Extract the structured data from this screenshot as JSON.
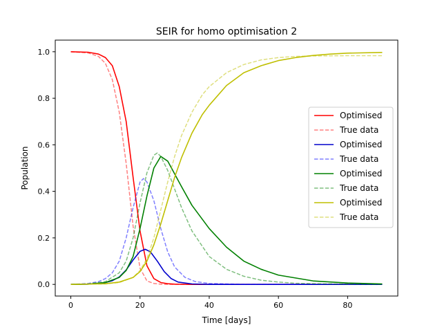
{
  "chart_data": {
    "type": "line",
    "title": "SEIR for homo optimisation 2",
    "xlabel": "Time [days]",
    "ylabel": "Population",
    "xlim": [
      -4.5,
      94.5
    ],
    "ylim": [
      -0.05,
      1.05
    ],
    "x_ticks": [
      0,
      20,
      40,
      60,
      80
    ],
    "y_ticks": [
      0.0,
      0.2,
      0.4,
      0.6,
      0.8,
      1.0
    ],
    "x_tick_labels": [
      "0",
      "20",
      "40",
      "60",
      "80"
    ],
    "y_tick_labels": [
      "0.0",
      "0.2",
      "0.4",
      "0.6",
      "0.8",
      "1.0"
    ],
    "grid": false,
    "legend_position": "center-right",
    "series": [
      {
        "name": "Optimised",
        "color": "#ff0000",
        "style": "solid",
        "x": [
          0,
          5,
          8,
          10,
          12,
          14,
          16,
          18,
          20,
          22,
          24,
          26,
          28,
          30,
          35,
          40,
          50,
          60,
          70,
          80,
          90
        ],
        "y": [
          1.0,
          0.998,
          0.99,
          0.975,
          0.94,
          0.85,
          0.7,
          0.46,
          0.23,
          0.08,
          0.025,
          0.008,
          0.003,
          0.001,
          0,
          0,
          0,
          0,
          0,
          0,
          0
        ]
      },
      {
        "name": "True data",
        "color": "#ff0000",
        "style": "dashed",
        "x": [
          0,
          5,
          8,
          10,
          12,
          14,
          16,
          18,
          20,
          22,
          24,
          26,
          28,
          30,
          35,
          40,
          50,
          60,
          70,
          80,
          90
        ],
        "y": [
          1.0,
          0.995,
          0.98,
          0.95,
          0.88,
          0.74,
          0.52,
          0.25,
          0.07,
          0.015,
          0.004,
          0.001,
          0,
          0,
          0,
          0,
          0,
          0,
          0,
          0,
          0
        ]
      },
      {
        "name": "Optimised",
        "color": "#0000cc",
        "style": "solid",
        "x": [
          0,
          5,
          10,
          12,
          14,
          16,
          18,
          20,
          21.5,
          23,
          25,
          27,
          29,
          31,
          35,
          40,
          50,
          60,
          70,
          80,
          90
        ],
        "y": [
          0,
          0.001,
          0.008,
          0.016,
          0.032,
          0.062,
          0.105,
          0.142,
          0.151,
          0.14,
          0.1,
          0.055,
          0.025,
          0.01,
          0.002,
          0,
          0,
          0,
          0,
          0,
          0
        ]
      },
      {
        "name": "True data",
        "color": "#0000ff",
        "style": "dashed",
        "x": [
          0,
          5,
          8,
          10,
          12,
          14,
          16,
          18,
          20,
          21,
          22,
          24,
          26,
          28,
          30,
          33,
          36,
          40,
          50,
          60,
          70,
          80,
          90
        ],
        "y": [
          0,
          0.004,
          0.012,
          0.025,
          0.05,
          0.1,
          0.2,
          0.33,
          0.44,
          0.455,
          0.44,
          0.36,
          0.24,
          0.14,
          0.075,
          0.03,
          0.012,
          0.004,
          0,
          0,
          0,
          0,
          0
        ]
      },
      {
        "name": "Optimised",
        "color": "#008000",
        "style": "solid",
        "x": [
          0,
          5,
          10,
          14,
          16,
          18,
          20,
          22,
          24,
          26,
          28,
          30,
          32,
          35,
          40,
          45,
          50,
          55,
          60,
          70,
          80,
          90
        ],
        "y": [
          0,
          0.001,
          0.008,
          0.03,
          0.06,
          0.12,
          0.24,
          0.38,
          0.5,
          0.55,
          0.53,
          0.475,
          0.42,
          0.34,
          0.24,
          0.16,
          0.1,
          0.065,
          0.04,
          0.015,
          0.006,
          0.002
        ]
      },
      {
        "name": "True data",
        "color": "#008000",
        "style": "dashed",
        "x": [
          0,
          5,
          10,
          14,
          16,
          18,
          20,
          22,
          24,
          25,
          26,
          28,
          30,
          32,
          35,
          40,
          45,
          50,
          55,
          60,
          65,
          70,
          80,
          90
        ],
        "y": [
          0,
          0.002,
          0.012,
          0.05,
          0.1,
          0.2,
          0.35,
          0.48,
          0.555,
          0.565,
          0.55,
          0.49,
          0.41,
          0.33,
          0.23,
          0.12,
          0.065,
          0.035,
          0.018,
          0.01,
          0.005,
          0.003,
          0.001,
          0
        ]
      },
      {
        "name": "Optimised",
        "color": "#bfbf00",
        "style": "solid",
        "x": [
          0,
          10,
          14,
          18,
          20,
          22,
          24,
          26,
          28,
          30,
          32,
          35,
          38,
          40,
          45,
          50,
          55,
          60,
          65,
          70,
          75,
          80,
          90
        ],
        "y": [
          0,
          0.003,
          0.01,
          0.03,
          0.055,
          0.1,
          0.17,
          0.26,
          0.36,
          0.46,
          0.545,
          0.65,
          0.73,
          0.77,
          0.855,
          0.91,
          0.94,
          0.962,
          0.975,
          0.984,
          0.99,
          0.994,
          0.997
        ]
      },
      {
        "name": "True data",
        "color": "#bfbf00",
        "style": "dashed",
        "x": [
          0,
          10,
          14,
          18,
          20,
          22,
          24,
          26,
          28,
          30,
          32,
          35,
          38,
          40,
          45,
          50,
          55,
          60,
          65,
          70,
          80,
          90
        ],
        "y": [
          0,
          0.002,
          0.008,
          0.03,
          0.06,
          0.11,
          0.2,
          0.32,
          0.44,
          0.55,
          0.64,
          0.74,
          0.815,
          0.85,
          0.91,
          0.945,
          0.965,
          0.975,
          0.98,
          0.982,
          0.983,
          0.983
        ]
      }
    ]
  }
}
